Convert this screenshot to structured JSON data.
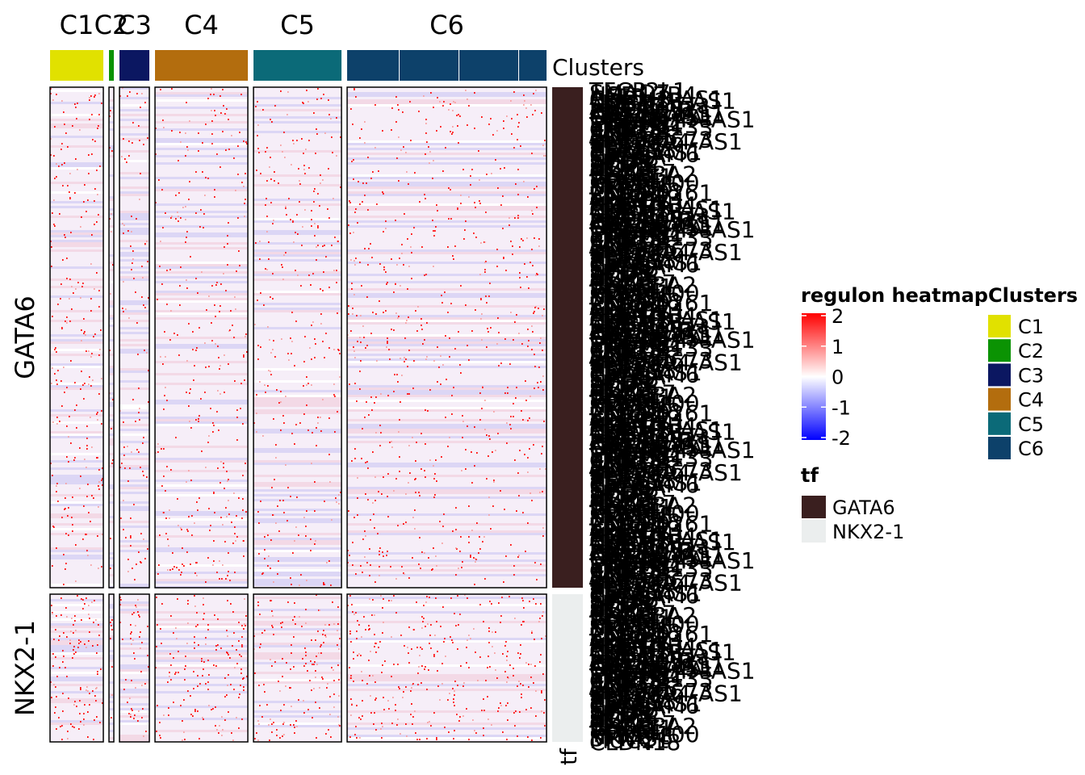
{
  "chart_data": {
    "type": "heatmap",
    "title": "",
    "column_clusters": {
      "annotation_label": "Clusters",
      "clusters": [
        {
          "name": "C1",
          "color": "#E1E100",
          "relative_width": 66
        },
        {
          "name": "C2",
          "color": "#0B9303",
          "relative_width": 6
        },
        {
          "name": "C3",
          "color": "#0B1761",
          "relative_width": 37
        },
        {
          "name": "C4",
          "color": "#B36D0E",
          "relative_width": 115
        },
        {
          "name": "C5",
          "color": "#0B6A78",
          "relative_width": 109
        },
        {
          "name": "C6",
          "color": "#0D416A",
          "relative_width": 247
        }
      ]
    },
    "row_groups": {
      "annotation_label": "tf",
      "groups": [
        {
          "name": "GATA6",
          "color": "#3A1F1F",
          "relative_height": 620
        },
        {
          "name": "NKX2-1",
          "color": "#EBEEEE",
          "relative_height": 183
        }
      ]
    },
    "color_scale": {
      "title": "regulon heatmap",
      "min": -2,
      "max": 2,
      "stops": [
        {
          "value": -2,
          "color": "#0000FF"
        },
        {
          "value": 0,
          "color": "#FFFFFF"
        },
        {
          "value": 2,
          "color": "#FF0000"
        }
      ],
      "tick_labels": [
        "2",
        "1",
        "0",
        "-1",
        "-2"
      ]
    },
    "row_labels": [
      "TFCP2L1",
      "SMAD7",
      "HSD17B4",
      "AFF3",
      "CHRM3-AS1",
      "CDKN2B-AS1",
      "LINC01",
      "SNHG14",
      "ABCA3",
      "LINC00511",
      "ZNF518B",
      "NKX2-1-AS1",
      "ITGB8-AS1",
      "GATA6-AS1",
      "EPB41L4A-AS1",
      "MTHFD2",
      "ST7-AS1",
      "TMEM8",
      "LINC01133",
      "CRNDE",
      "SMAD3",
      "AC012",
      "FOXA2",
      "ZNF326",
      "LINC00673",
      "SLC26A4-AS1",
      "HNF1B",
      "KLF5",
      "ELF3",
      "TSPAN8",
      "PDX1-AS1",
      "CEACAM6",
      "NAPSA",
      "SFTPB",
      "SFTA2",
      "LMO3",
      "SFTPC",
      "HOPX",
      "AGR2",
      "MUC1",
      "CXCL17",
      "SCGB3A2",
      "LPCAT1",
      "RORC",
      "FOXA1",
      "TMEM100",
      "NKX2-8",
      "SFTA3",
      "MUC21",
      "CLDN18",
      "LINC00261",
      "ZNF22",
      "AC004",
      "LINC02"
    ]
  }
}
